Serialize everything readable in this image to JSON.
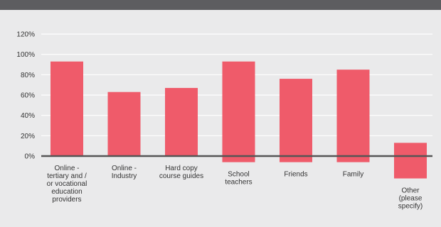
{
  "chart_data": {
    "type": "bar",
    "categories": [
      [
        "Online -",
        "tertiary and /",
        "or vocational",
        "education",
        "providers"
      ],
      [
        "Online -",
        "Industry"
      ],
      [
        "Hard copy",
        "course guides"
      ],
      [
        "School",
        "teachers"
      ],
      [
        "Friends"
      ],
      [
        "Family"
      ],
      [
        "Other",
        "(please",
        "specify)"
      ]
    ],
    "values": [
      93,
      63,
      67,
      93,
      76,
      85,
      13
    ],
    "bar_range": [
      [
        0,
        93
      ],
      [
        0,
        63
      ],
      [
        0,
        67
      ],
      [
        -6,
        93
      ],
      [
        -6,
        76
      ],
      [
        -6,
        85
      ],
      [
        -22,
        13
      ]
    ],
    "yticks": [
      "0%",
      "20%",
      "40%",
      "60%",
      "80%",
      "100%",
      "120%"
    ],
    "ylim": [
      0,
      120
    ],
    "grid": true,
    "colors": {
      "bar": "#ef5b6a",
      "grid": "#ffffff",
      "axis": "#555555",
      "background": "#eaeaeb",
      "top_band": "#5d5d60"
    }
  }
}
